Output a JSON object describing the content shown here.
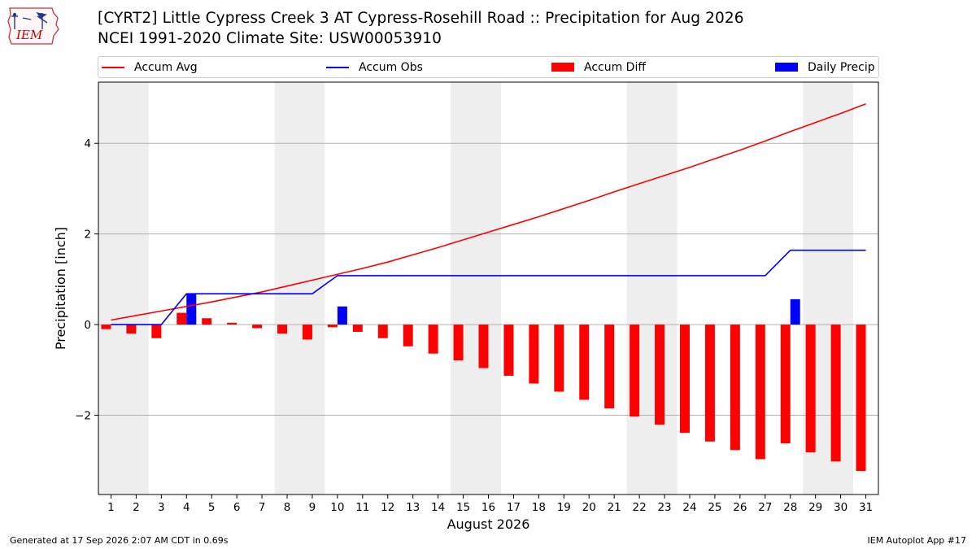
{
  "logo": {
    "text": "IEM",
    "colors": {
      "outline": "#cc3333",
      "text": "#cc0000",
      "icon": "#1f3a93"
    }
  },
  "title_line1": "[CYRT2] Little Cypress Creek 3 AT Cypress-Rosehill Road :: Precipitation for Aug 2026",
  "title_line2": "NCEI 1991-2020 Climate Site: USW00053910",
  "legend": [
    {
      "label": "Accum Avg",
      "kind": "line",
      "color": "#ff0000"
    },
    {
      "label": "Accum Obs",
      "kind": "line",
      "color": "#0000ff"
    },
    {
      "label": "Accum Diff",
      "kind": "bar",
      "color": "#ff0000"
    },
    {
      "label": "Daily Precip",
      "kind": "bar",
      "color": "#0000ff"
    }
  ],
  "footer_left": "Generated at 17 Sep 2026 2:07 AM CDT in 0.69s",
  "footer_right": "IEM Autoplot App #17",
  "chart_data": {
    "type": "bar",
    "xlabel": "August 2026",
    "ylabel": "Precipitation [inch]",
    "x": [
      1,
      2,
      3,
      4,
      5,
      6,
      7,
      8,
      9,
      10,
      11,
      12,
      13,
      14,
      15,
      16,
      17,
      18,
      19,
      20,
      21,
      22,
      23,
      24,
      25,
      26,
      27,
      28,
      29,
      30,
      31
    ],
    "xlim": [
      0.5,
      31.5
    ],
    "ylim": [
      -3.75,
      5.35
    ],
    "yticks": [
      -2,
      0,
      2,
      4
    ],
    "ytick_labels": [
      "−2",
      "0",
      "2",
      "4"
    ],
    "grid": "horizontal",
    "weekend_shading": [
      [
        0.5,
        2.5
      ],
      [
        7.5,
        9.5
      ],
      [
        14.5,
        16.5
      ],
      [
        21.5,
        23.5
      ],
      [
        28.5,
        30.5
      ]
    ],
    "series": [
      {
        "name": "Accum Avg",
        "type": "line",
        "color": "#ff0000",
        "values": [
          0.1,
          0.2,
          0.3,
          0.4,
          0.5,
          0.61,
          0.72,
          0.85,
          0.98,
          1.11,
          1.24,
          1.38,
          1.54,
          1.7,
          1.87,
          2.04,
          2.21,
          2.38,
          2.56,
          2.74,
          2.93,
          3.11,
          3.29,
          3.47,
          3.66,
          3.85,
          4.05,
          4.26,
          4.46,
          4.66,
          4.87
        ]
      },
      {
        "name": "Accum Obs",
        "type": "line",
        "color": "#0000ff",
        "values": [
          0.0,
          0.0,
          0.0,
          0.68,
          0.68,
          0.68,
          0.68,
          0.68,
          0.68,
          1.08,
          1.08,
          1.08,
          1.08,
          1.08,
          1.08,
          1.08,
          1.08,
          1.08,
          1.08,
          1.08,
          1.08,
          1.08,
          1.08,
          1.08,
          1.08,
          1.08,
          1.08,
          1.64,
          1.64,
          1.64,
          1.64
        ]
      },
      {
        "name": "Accum Diff",
        "type": "bar",
        "color": "#ff0000",
        "values": [
          -0.1,
          -0.2,
          -0.3,
          0.26,
          0.14,
          0.04,
          -0.08,
          -0.2,
          -0.33,
          -0.06,
          -0.16,
          -0.3,
          -0.48,
          -0.64,
          -0.79,
          -0.96,
          -1.13,
          -1.3,
          -1.48,
          -1.66,
          -1.85,
          -2.03,
          -2.21,
          -2.39,
          -2.58,
          -2.77,
          -2.97,
          -2.62,
          -2.82,
          -3.02,
          -3.23
        ]
      },
      {
        "name": "Daily Precip",
        "type": "bar",
        "color": "#0000ff",
        "values": [
          0,
          0,
          0,
          0.68,
          0,
          0,
          0,
          0,
          0,
          0.4,
          0,
          0,
          0,
          0,
          0,
          0,
          0,
          0,
          0,
          0,
          0,
          0,
          0,
          0,
          0,
          0,
          0,
          0.56,
          0,
          0,
          0
        ]
      }
    ]
  }
}
